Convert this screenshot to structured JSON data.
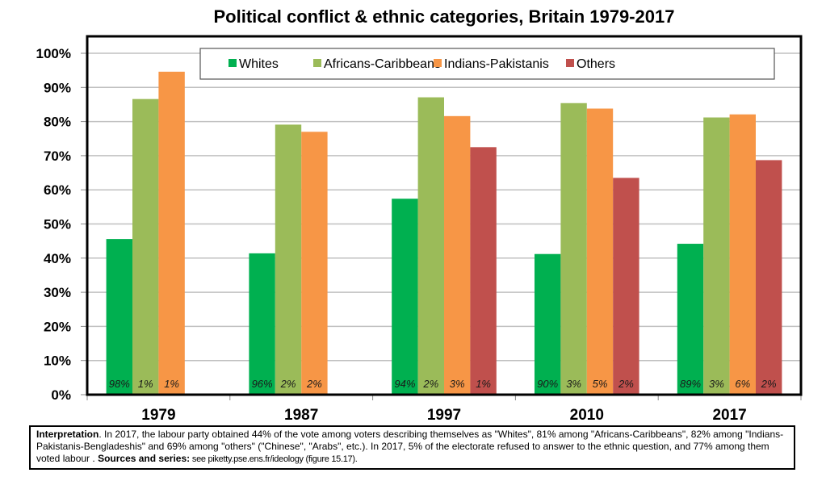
{
  "chart_data": {
    "type": "bar",
    "title": "Political conflict & ethnic categories, Britain 1979-2017",
    "xlabel": "",
    "ylabel": "",
    "ylim": [
      0,
      100
    ],
    "yticks": [
      "0%",
      "10%",
      "20%",
      "30%",
      "40%",
      "50%",
      "60%",
      "70%",
      "80%",
      "90%",
      "100%"
    ],
    "grid": true,
    "legend_position": "top",
    "categories": [
      "1979",
      "1987",
      "1997",
      "2010",
      "2017"
    ],
    "series": [
      {
        "name": "Whites",
        "color": "#00B050",
        "values": [
          45.6,
          41.4,
          57.4,
          41.2,
          44.2
        ],
        "share_labels": [
          "98%",
          "96%",
          "94%",
          "90%",
          "89%"
        ]
      },
      {
        "name": "Africans-Caribbeans",
        "color": "#9BBB59",
        "values": [
          86.6,
          79.1,
          87.1,
          85.4,
          81.2
        ],
        "share_labels": [
          "1%",
          "2%",
          "2%",
          "3%",
          "3%"
        ]
      },
      {
        "name": "Indians-Pakistanis",
        "color": "#F79646",
        "values": [
          94.6,
          77.0,
          81.6,
          83.8,
          82.1
        ],
        "share_labels": [
          "1%",
          "2%",
          "3%",
          "5%",
          "6%"
        ]
      },
      {
        "name": "Others",
        "color": "#C0504D",
        "values": [
          null,
          null,
          72.5,
          63.5,
          68.7
        ],
        "share_labels": [
          null,
          null,
          "1%",
          "2%",
          "2%"
        ]
      }
    ]
  },
  "note": {
    "interpretation_label": "Interpretation",
    "interpretation_text": ". In 2017, the labour party obtained 44% of the vote among voters describing themselves as \"Whites\", 81% among \"Africans-Caribbeans\", 82% among \"Indians-Pakistanis-Bengladeshis\" and 69% among \"others\" (\"Chinese\", \"Arabs\", etc.). In 2017, 5% of the electorate refused to answer to the ethnic question, and 77% among them voted labour . ",
    "sources_label": "Sources and series:",
    "sources_text": " see piketty.pse.ens.fr/ideology (figure 15.17)."
  }
}
